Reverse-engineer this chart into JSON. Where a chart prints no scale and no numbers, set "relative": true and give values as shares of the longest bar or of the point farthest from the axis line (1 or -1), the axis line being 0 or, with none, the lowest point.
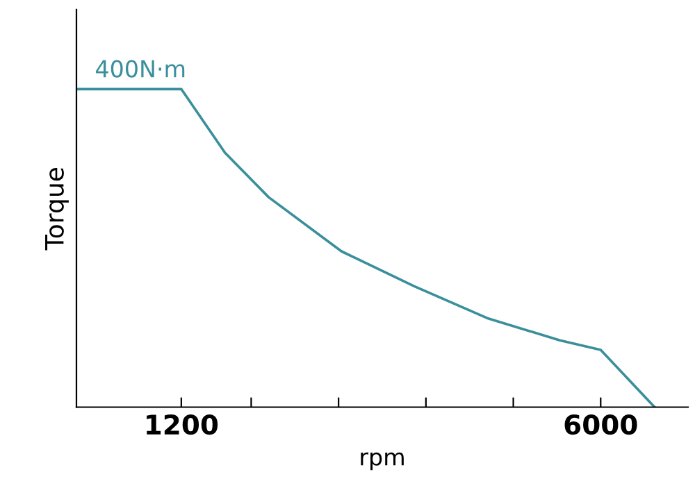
{
  "chart_data": {
    "type": "line",
    "relative": true,
    "xlabel": "rpm",
    "ylabel": "Torque",
    "annotations": [
      "400N·m"
    ],
    "x": [
      0,
      1200,
      1700,
      2200,
      3033,
      3867,
      4700,
      5533,
      6000,
      6617
    ],
    "series": [
      {
        "color": "#3a8f9c",
        "values": [
          1,
          1,
          0.8,
          0.66,
          0.49,
          0.38,
          0.28,
          0.21,
          0.18,
          0
        ]
      }
    ],
    "xlim": [
      0,
      7000
    ],
    "xticks": [
      1200,
      {
        "value": 2000,
        "label": null
      },
      {
        "value": 3000,
        "label": null
      },
      {
        "value": 4000,
        "label": null
      },
      {
        "value": 5000,
        "label": null
      },
      6000
    ],
    "grid": false,
    "legend": false,
    "marker": "none",
    "line_style": "solid"
  }
}
